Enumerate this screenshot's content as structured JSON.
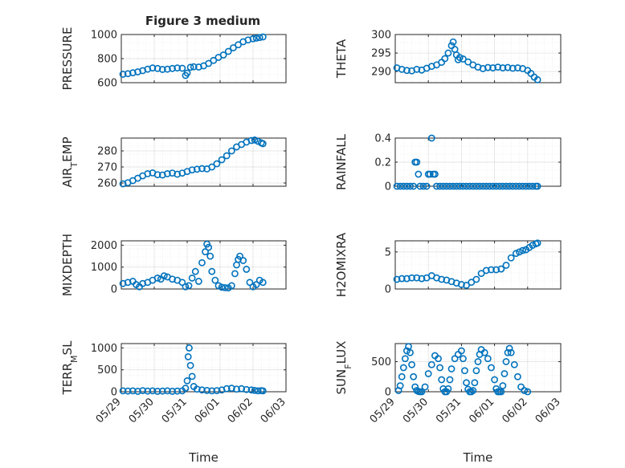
{
  "figure": {
    "title": "Figure 3 medium"
  },
  "colors": {
    "marker": "#0072BD",
    "axis": "#262626",
    "background": "#ffffff"
  },
  "chart_data": [
    {
      "type": "scatter",
      "id": "pressure",
      "title": "Figure 3 medium",
      "ylabel": "PRESSURE",
      "ylabel_parts": [
        "PRESSURE"
      ],
      "ylim": [
        600,
        1000
      ],
      "yticks": [
        600,
        800,
        1000
      ],
      "xlabel": "",
      "xlim_days": [
        0,
        5
      ],
      "x_tick_labels": [
        "05/29",
        "05/30",
        "05/31",
        "06/01",
        "06/02",
        "06/03"
      ],
      "show_x_tick_labels": false,
      "grid": true,
      "minor_grid": true,
      "x_days": [
        0.05,
        0.2,
        0.35,
        0.5,
        0.65,
        0.8,
        0.95,
        1.1,
        1.25,
        1.4,
        1.55,
        1.7,
        1.85,
        1.95,
        2.0,
        2.1,
        2.2,
        2.35,
        2.5,
        2.65,
        2.8,
        2.95,
        3.1,
        3.25,
        3.4,
        3.55,
        3.7,
        3.85,
        4.0,
        4.1,
        4.2,
        4.3
      ],
      "y": [
        670,
        675,
        682,
        690,
        700,
        712,
        722,
        718,
        710,
        712,
        718,
        722,
        720,
        660,
        680,
        728,
        732,
        730,
        740,
        760,
        785,
        810,
        830,
        860,
        890,
        915,
        940,
        955,
        965,
        970,
        975,
        980
      ]
    },
    {
      "type": "scatter",
      "id": "theta",
      "ylabel": "THETA",
      "ylabel_parts": [
        "THETA"
      ],
      "ylim": [
        287,
        300
      ],
      "yticks": [
        290,
        295,
        300
      ],
      "xlabel": "",
      "xlim_days": [
        0,
        5
      ],
      "x_tick_labels": [
        "05/29",
        "05/30",
        "05/31",
        "06/01",
        "06/02",
        "06/03"
      ],
      "show_x_tick_labels": false,
      "grid": true,
      "minor_grid": true,
      "x_days": [
        0.05,
        0.2,
        0.35,
        0.5,
        0.65,
        0.8,
        0.95,
        1.1,
        1.25,
        1.4,
        1.5,
        1.6,
        1.7,
        1.75,
        1.8,
        1.85,
        1.9,
        1.95,
        2.05,
        2.2,
        2.35,
        2.5,
        2.65,
        2.8,
        2.95,
        3.1,
        3.25,
        3.4,
        3.55,
        3.7,
        3.85,
        4.0,
        4.1,
        4.2,
        4.3
      ],
      "y": [
        291,
        290.6,
        290.3,
        290.2,
        290.6,
        290.4,
        290.9,
        291.4,
        291.8,
        292.5,
        293.5,
        295,
        297,
        298,
        296,
        294.5,
        293.2,
        293.8,
        293.4,
        292.6,
        291.8,
        291.2,
        290.8,
        291.1,
        291,
        291.2,
        291,
        291.1,
        290.9,
        291,
        290.8,
        290.3,
        289.5,
        288.5,
        287.8
      ]
    },
    {
      "type": "scatter",
      "id": "air_temp",
      "ylabel": "AIR_TEMP",
      "ylabel_parts": [
        "AIR",
        "T",
        "EMP"
      ],
      "ylim": [
        258,
        288
      ],
      "yticks": [
        260,
        270,
        280
      ],
      "xlabel": "",
      "xlim_days": [
        0,
        5
      ],
      "x_tick_labels": [
        "05/29",
        "05/30",
        "05/31",
        "06/01",
        "06/02",
        "06/03"
      ],
      "show_x_tick_labels": false,
      "grid": true,
      "minor_grid": true,
      "x_days": [
        0.05,
        0.2,
        0.35,
        0.5,
        0.65,
        0.8,
        0.95,
        1.1,
        1.25,
        1.4,
        1.55,
        1.7,
        1.85,
        2.0,
        2.15,
        2.3,
        2.45,
        2.6,
        2.75,
        2.9,
        3.05,
        3.2,
        3.35,
        3.5,
        3.65,
        3.8,
        3.95,
        4.05,
        4.15,
        4.25,
        4.3
      ],
      "y": [
        259.5,
        260.2,
        261.5,
        263,
        264.5,
        265.8,
        266.3,
        265.2,
        265,
        265.8,
        266.2,
        265.5,
        266.2,
        267.2,
        268.2,
        268.6,
        269,
        268.8,
        270,
        272,
        274.5,
        277,
        280,
        282.5,
        284,
        285.5,
        286.5,
        286.8,
        286,
        285,
        284.5
      ]
    },
    {
      "type": "scatter",
      "id": "rainfall",
      "ylabel": "RAINFALL",
      "ylabel_parts": [
        "RAINFALL"
      ],
      "ylim": [
        0,
        0.4
      ],
      "yticks": [
        0,
        0.2,
        0.4
      ],
      "xlabel": "",
      "xlim_days": [
        0,
        5
      ],
      "x_tick_labels": [
        "05/29",
        "05/30",
        "05/31",
        "06/01",
        "06/02",
        "06/03"
      ],
      "show_x_tick_labels": false,
      "grid": true,
      "minor_grid": true,
      "x_days": [
        0.05,
        0.15,
        0.25,
        0.35,
        0.45,
        0.55,
        0.6,
        0.65,
        0.7,
        0.75,
        0.85,
        0.95,
        1.0,
        1.05,
        1.1,
        1.15,
        1.2,
        1.25,
        1.35,
        1.45,
        1.55,
        1.65,
        1.75,
        1.85,
        1.95,
        2.05,
        2.15,
        2.25,
        2.35,
        2.45,
        2.55,
        2.65,
        2.75,
        2.85,
        2.95,
        3.05,
        3.15,
        3.25,
        3.35,
        3.45,
        3.55,
        3.65,
        3.75,
        3.85,
        3.95,
        4.05,
        4.15,
        4.25,
        4.3
      ],
      "y": [
        0,
        0,
        0,
        0,
        0,
        0,
        0.2,
        0.2,
        0.1,
        0,
        0,
        0,
        0.1,
        0.1,
        0.4,
        0.1,
        0.1,
        0,
        0,
        0,
        0,
        0,
        0,
        0,
        0,
        0,
        0,
        0,
        0,
        0,
        0,
        0,
        0,
        0,
        0,
        0,
        0,
        0,
        0,
        0,
        0,
        0,
        0,
        0,
        0,
        0,
        0,
        0,
        0
      ]
    },
    {
      "type": "scatter",
      "id": "mixdepth",
      "ylabel": "MIXDEPTH",
      "ylabel_parts": [
        "MIXDEPTH"
      ],
      "ylim": [
        0,
        2200
      ],
      "yticks": [
        0,
        1000,
        2000
      ],
      "xlabel": "",
      "xlim_days": [
        0,
        5
      ],
      "x_tick_labels": [
        "05/29",
        "05/30",
        "05/31",
        "06/01",
        "06/02",
        "06/03"
      ],
      "show_x_tick_labels": false,
      "grid": true,
      "minor_grid": true,
      "x_days": [
        0.05,
        0.2,
        0.35,
        0.45,
        0.55,
        0.65,
        0.8,
        0.95,
        1.1,
        1.2,
        1.3,
        1.4,
        1.55,
        1.7,
        1.85,
        1.95,
        2.05,
        2.15,
        2.25,
        2.35,
        2.45,
        2.55,
        2.6,
        2.65,
        2.7,
        2.75,
        2.85,
        2.95,
        3.05,
        3.15,
        3.25,
        3.35,
        3.45,
        3.5,
        3.55,
        3.6,
        3.7,
        3.8,
        3.9,
        4.0,
        4.1,
        4.2,
        4.3
      ],
      "y": [
        250,
        300,
        350,
        200,
        100,
        250,
        300,
        400,
        500,
        450,
        600,
        550,
        450,
        400,
        300,
        100,
        150,
        500,
        800,
        350,
        1200,
        1700,
        2050,
        1900,
        1500,
        800,
        400,
        150,
        80,
        60,
        50,
        150,
        700,
        1100,
        1350,
        1500,
        1300,
        900,
        300,
        100,
        200,
        400,
        300
      ]
    },
    {
      "type": "scatter",
      "id": "h2omixra",
      "ylabel": "H2OMIXRA",
      "ylabel_parts": [
        "H2OMIXRA"
      ],
      "ylim": [
        0,
        6.5
      ],
      "yticks": [
        0,
        5
      ],
      "xlabel": "",
      "xlim_days": [
        0,
        5
      ],
      "x_tick_labels": [
        "05/29",
        "05/30",
        "05/31",
        "06/01",
        "06/02",
        "06/03"
      ],
      "show_x_tick_labels": false,
      "grid": true,
      "minor_grid": true,
      "x_days": [
        0.05,
        0.2,
        0.35,
        0.5,
        0.65,
        0.8,
        0.95,
        1.1,
        1.25,
        1.4,
        1.55,
        1.7,
        1.85,
        2.0,
        2.15,
        2.3,
        2.45,
        2.6,
        2.75,
        2.9,
        3.05,
        3.2,
        3.35,
        3.5,
        3.65,
        3.75,
        3.85,
        3.95,
        4.05,
        4.15,
        4.25,
        4.3
      ],
      "y": [
        1.3,
        1.4,
        1.4,
        1.5,
        1.5,
        1.4,
        1.5,
        1.8,
        1.5,
        1.3,
        1.2,
        1.0,
        0.8,
        0.6,
        0.5,
        0.9,
        1.3,
        2.1,
        2.5,
        2.6,
        2.6,
        2.7,
        3.2,
        4.2,
        4.8,
        5.0,
        5.2,
        5.3,
        5.6,
        5.9,
        6.1,
        6.2
      ]
    },
    {
      "type": "scatter",
      "id": "terr_msl",
      "ylabel": "TERR_MSL",
      "ylabel_parts": [
        "TERR",
        "M",
        "SL"
      ],
      "ylim": [
        0,
        1100
      ],
      "yticks": [
        0,
        500,
        1000
      ],
      "xlabel": "Time",
      "xlim_days": [
        0,
        5
      ],
      "x_tick_labels": [
        "05/29",
        "05/30",
        "05/31",
        "06/01",
        "06/02",
        "06/03"
      ],
      "show_x_tick_labels": true,
      "grid": true,
      "minor_grid": true,
      "x_days": [
        0.05,
        0.2,
        0.35,
        0.5,
        0.65,
        0.8,
        0.95,
        1.1,
        1.25,
        1.4,
        1.55,
        1.7,
        1.85,
        1.95,
        2.0,
        2.03,
        2.06,
        2.1,
        2.15,
        2.2,
        2.3,
        2.45,
        2.6,
        2.75,
        2.9,
        3.05,
        3.2,
        3.35,
        3.5,
        3.65,
        3.8,
        3.95,
        4.05,
        4.15,
        4.25,
        4.3
      ],
      "y": [
        20,
        15,
        20,
        10,
        25,
        15,
        20,
        10,
        15,
        20,
        10,
        15,
        20,
        80,
        250,
        800,
        1000,
        600,
        350,
        120,
        60,
        40,
        30,
        20,
        25,
        40,
        70,
        80,
        60,
        70,
        50,
        40,
        30,
        20,
        25,
        20
      ]
    },
    {
      "type": "scatter",
      "id": "sun_flux",
      "ylabel": "SUN_FLUX",
      "ylabel_parts": [
        "SUN",
        "F",
        "LUX"
      ],
      "ylim": [
        0,
        800
      ],
      "yticks": [
        0,
        500
      ],
      "xlabel": "Time",
      "xlim_days": [
        0,
        5
      ],
      "x_tick_labels": [
        "05/29",
        "05/30",
        "05/31",
        "06/01",
        "06/02",
        "06/03"
      ],
      "show_x_tick_labels": true,
      "grid": true,
      "minor_grid": true,
      "x_days": [
        0.1,
        0.15,
        0.2,
        0.25,
        0.3,
        0.35,
        0.4,
        0.45,
        0.5,
        0.55,
        0.6,
        0.65,
        0.7,
        0.75,
        0.8,
        0.9,
        1.0,
        1.1,
        1.2,
        1.3,
        1.35,
        1.4,
        1.45,
        1.5,
        1.55,
        1.6,
        1.65,
        1.7,
        1.8,
        1.9,
        2.0,
        2.05,
        2.1,
        2.15,
        2.2,
        2.25,
        2.3,
        2.35,
        2.4,
        2.45,
        2.5,
        2.55,
        2.6,
        2.7,
        2.8,
        2.9,
        3.0,
        3.05,
        3.1,
        3.15,
        3.2,
        3.25,
        3.3,
        3.35,
        3.4,
        3.45,
        3.5,
        3.6,
        3.7,
        3.8,
        3.9,
        4.0
      ],
      "y": [
        20,
        100,
        250,
        400,
        550,
        680,
        750,
        650,
        450,
        250,
        80,
        20,
        5,
        0,
        0,
        80,
        300,
        450,
        600,
        550,
        400,
        200,
        50,
        0,
        0,
        50,
        200,
        380,
        550,
        620,
        680,
        550,
        350,
        150,
        40,
        0,
        0,
        20,
        150,
        350,
        500,
        620,
        700,
        650,
        550,
        400,
        200,
        50,
        0,
        0,
        0,
        100,
        300,
        500,
        650,
        720,
        650,
        450,
        250,
        80,
        20,
        0
      ]
    }
  ]
}
